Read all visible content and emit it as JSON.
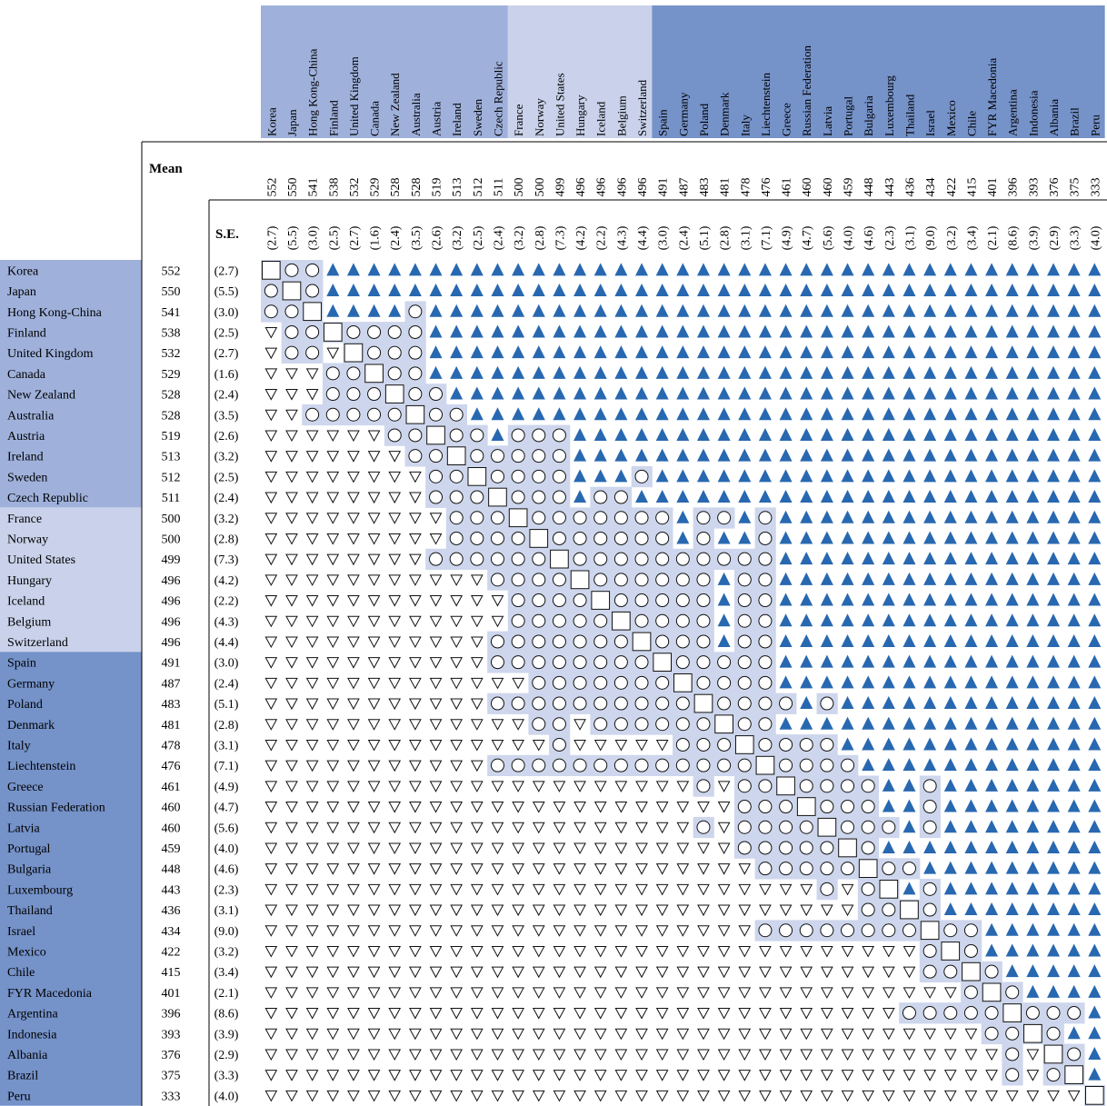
{
  "chart_data": {
    "type": "table",
    "title": "",
    "mean_label": "Mean",
    "se_label": "S.E.",
    "colors": {
      "group1": "#9fb1db",
      "group2": "#c9d2ea",
      "group3": "#7592c9",
      "diag": "#cdd6ec",
      "triangle": "#2868b0"
    },
    "countries": [
      "Korea",
      "Japan",
      "Hong Kong-China",
      "Finland",
      "United Kingdom",
      "Canada",
      "New Zealand",
      "Australia",
      "Austria",
      "Ireland",
      "Sweden",
      "Czech Republic",
      "France",
      "Norway",
      "United States",
      "Hungary",
      "Iceland",
      "Belgium",
      "Switzerland",
      "Spain",
      "Germany",
      "Poland",
      "Denmark",
      "Italy",
      "Liechtenstein",
      "Greece",
      "Russian Federation",
      "Latvia",
      "Portugal",
      "Bulgaria",
      "Luxembourg",
      "Thailand",
      "Israel",
      "Mexico",
      "Chile",
      "FYR Macedonia",
      "Argentina",
      "Indonesia",
      "Albania",
      "Brazil",
      "Peru"
    ],
    "means": [
      552,
      550,
      541,
      538,
      532,
      529,
      528,
      528,
      519,
      513,
      512,
      511,
      500,
      500,
      499,
      496,
      496,
      496,
      496,
      491,
      487,
      483,
      481,
      478,
      476,
      461,
      460,
      460,
      459,
      448,
      443,
      436,
      434,
      422,
      415,
      401,
      396,
      393,
      376,
      375,
      333
    ],
    "se": [
      "(2.7)",
      "(5.5)",
      "(3.0)",
      "(2.5)",
      "(2.7)",
      "(1.6)",
      "(2.4)",
      "(3.5)",
      "(2.6)",
      "(3.2)",
      "(2.5)",
      "(2.4)",
      "(3.2)",
      "(2.8)",
      "(7.3)",
      "(4.2)",
      "(2.2)",
      "(4.3)",
      "(4.4)",
      "(3.0)",
      "(2.4)",
      "(5.1)",
      "(2.8)",
      "(3.1)",
      "(7.1)",
      "(4.9)",
      "(4.7)",
      "(5.6)",
      "(4.0)",
      "(4.6)",
      "(2.3)",
      "(3.1)",
      "(9.0)",
      "(3.2)",
      "(3.4)",
      "(2.1)",
      "(8.6)",
      "(3.9)",
      "(2.9)",
      "(3.3)",
      "(4.0)"
    ],
    "groups": [
      1,
      1,
      1,
      1,
      1,
      1,
      1,
      1,
      1,
      1,
      1,
      1,
      2,
      2,
      2,
      2,
      2,
      2,
      2,
      3,
      3,
      3,
      3,
      3,
      3,
      3,
      3,
      3,
      3,
      3,
      3,
      3,
      3,
      3,
      3,
      3,
      3,
      3,
      3,
      3,
      3
    ],
    "neutral_ranges": [
      [
        1,
        2
      ],
      [
        0,
        2
      ],
      [
        0,
        1,
        7,
        7
      ],
      [
        1,
        2,
        4,
        7
      ],
      [
        1,
        2,
        4,
        7
      ],
      [
        3,
        4,
        6,
        7
      ],
      [
        3,
        6,
        7,
        8
      ],
      [
        2,
        6,
        8,
        9
      ],
      [
        6,
        7,
        9,
        10,
        12,
        14
      ],
      [
        7,
        8,
        10,
        14
      ],
      [
        8,
        9,
        11,
        14,
        18,
        18
      ],
      [
        8,
        10,
        12,
        14,
        16,
        17
      ],
      [
        9,
        11,
        13,
        19,
        21,
        22,
        24,
        24
      ],
      [
        9,
        12,
        14,
        19,
        21,
        21,
        24,
        24
      ],
      [
        8,
        13,
        15,
        24
      ],
      [
        11,
        14,
        16,
        21,
        23,
        24
      ],
      [
        12,
        15,
        17,
        21,
        23,
        24
      ],
      [
        12,
        16,
        18,
        21,
        23,
        24
      ],
      [
        11,
        17,
        19,
        21,
        23,
        24
      ],
      [
        11,
        18,
        20,
        24
      ],
      [
        13,
        19,
        21,
        24
      ],
      [
        11,
        20,
        22,
        25,
        27,
        27
      ],
      [
        13,
        14,
        16,
        21,
        23,
        24
      ],
      [
        14,
        14,
        20,
        22,
        24,
        27
      ],
      [
        11,
        23,
        25,
        28
      ],
      [
        21,
        21,
        23,
        24,
        26,
        29,
        32,
        32
      ],
      [
        23,
        25,
        27,
        29,
        32,
        32
      ],
      [
        21,
        21,
        23,
        26,
        28,
        30,
        32,
        32
      ],
      [
        23,
        27,
        29,
        29
      ],
      [
        24,
        28,
        30,
        31
      ],
      [
        27,
        27,
        29,
        30,
        32,
        32
      ],
      [
        29,
        30,
        32,
        32
      ],
      [
        24,
        31,
        33,
        34
      ],
      [
        32,
        32,
        34,
        34
      ],
      [
        32,
        33,
        35,
        35
      ],
      [
        34,
        34,
        36,
        36
      ],
      [
        31,
        35,
        37,
        39
      ],
      [
        35,
        36,
        38,
        38
      ],
      [
        36,
        36,
        39,
        39
      ],
      [
        36,
        36,
        38,
        38
      ],
      []
    ]
  }
}
